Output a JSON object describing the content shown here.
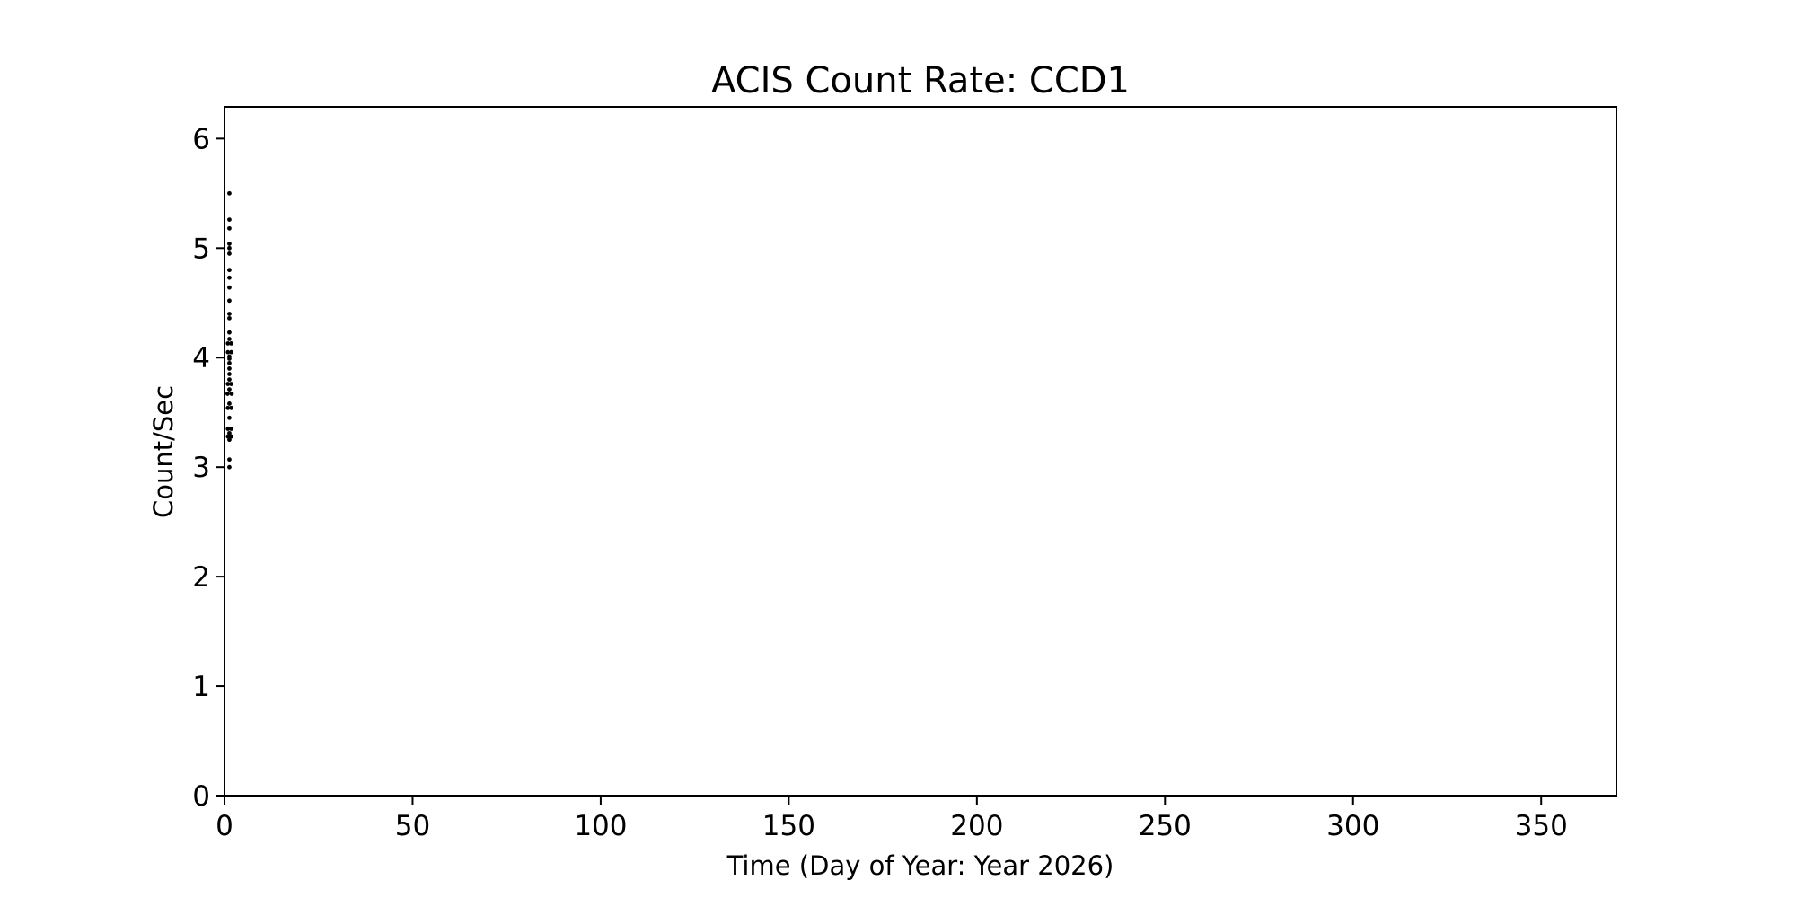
{
  "figure": {
    "background": "#ffffff",
    "foreground": "#000000"
  },
  "chart_data": {
    "type": "scatter",
    "title": "ACIS Count Rate: CCD1",
    "xlabel": "Time (Day of Year: Year 2026)",
    "ylabel": "Count/Sec",
    "xlim": [
      0,
      370
    ],
    "ylim": [
      0,
      6.29
    ],
    "xticks": [
      0,
      50,
      100,
      150,
      200,
      250,
      300,
      350
    ],
    "yticks": [
      0,
      1,
      2,
      3,
      4,
      5,
      6
    ],
    "grid": false,
    "legend": null,
    "marker": {
      "shape": "dot",
      "color": "#000000",
      "radius_px": 2.4
    },
    "series": [
      {
        "name": "CCD1 count rate",
        "points": [
          [
            1.3,
            5.5
          ],
          [
            1.3,
            5.26
          ],
          [
            1.3,
            5.18
          ],
          [
            1.3,
            5.04
          ],
          [
            1.3,
            5.0
          ],
          [
            1.3,
            4.95
          ],
          [
            1.3,
            4.8
          ],
          [
            1.3,
            4.73
          ],
          [
            1.3,
            4.64
          ],
          [
            1.3,
            4.52
          ],
          [
            1.3,
            4.4
          ],
          [
            1.3,
            4.36
          ],
          [
            1.3,
            4.23
          ],
          [
            1.3,
            4.17
          ],
          [
            0.9,
            4.13
          ],
          [
            1.8,
            4.13
          ],
          [
            0.9,
            4.05
          ],
          [
            1.8,
            4.05
          ],
          [
            1.3,
            4.01
          ],
          [
            1.3,
            3.99
          ],
          [
            1.3,
            3.95
          ],
          [
            1.3,
            3.9
          ],
          [
            1.3,
            3.85
          ],
          [
            1.3,
            3.8
          ],
          [
            0.9,
            3.76
          ],
          [
            1.8,
            3.76
          ],
          [
            1.3,
            3.71
          ],
          [
            0.8,
            3.67
          ],
          [
            1.9,
            3.67
          ],
          [
            1.3,
            3.58
          ],
          [
            0.9,
            3.54
          ],
          [
            1.8,
            3.54
          ],
          [
            1.3,
            3.45
          ],
          [
            0.9,
            3.35
          ],
          [
            1.8,
            3.35
          ],
          [
            1.3,
            3.31
          ],
          [
            0.9,
            3.28
          ],
          [
            1.8,
            3.28
          ],
          [
            1.3,
            3.25
          ],
          [
            1.3,
            3.07
          ],
          [
            1.3,
            3.0
          ]
        ]
      }
    ]
  }
}
